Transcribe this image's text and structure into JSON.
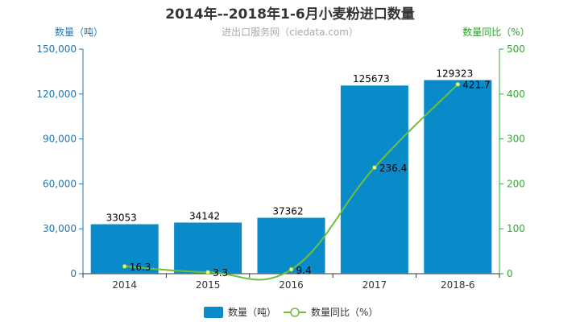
{
  "title": "2014年--2018年1-6月小麦粉进口数量",
  "subtitle": "进出口服务网（ciedata.com）",
  "left_axis_title": "数量（吨）",
  "right_axis_title": "数量同比（%）",
  "colors": {
    "bar": "#0a8bc9",
    "line": "#6dbf3c",
    "left_axis": "#1f77b4",
    "right_axis": "#3aa63a"
  },
  "legend": [
    {
      "label": "数量（吨）",
      "icon": "bar-swatch-icon"
    },
    {
      "label": "数量同比（%）",
      "icon": "line-marker-icon"
    }
  ],
  "chart_data": {
    "type": "bar",
    "categories": [
      "2014",
      "2015",
      "2016",
      "2017",
      "2018-6"
    ],
    "series": [
      {
        "name": "数量（吨）",
        "type": "bar",
        "axis": "left",
        "values": [
          33053,
          34142,
          37362,
          125673,
          129323
        ]
      },
      {
        "name": "数量同比（%）",
        "type": "line",
        "axis": "right",
        "values": [
          16.3,
          3.3,
          9.4,
          236.4,
          421.7
        ]
      }
    ],
    "left_axis": {
      "min": 0,
      "max": 150000,
      "ticks": [
        "0",
        "30,000",
        "60,000",
        "90,000",
        "120,000",
        "150,000"
      ],
      "tick_values": [
        0,
        30000,
        60000,
        90000,
        120000,
        150000
      ]
    },
    "right_axis": {
      "min": 0,
      "max": 500,
      "ticks": [
        "0",
        "100",
        "200",
        "300",
        "400",
        "500"
      ],
      "tick_values": [
        0,
        100,
        200,
        300,
        400,
        500
      ]
    },
    "grid": false,
    "legend_position": "bottom-center"
  }
}
